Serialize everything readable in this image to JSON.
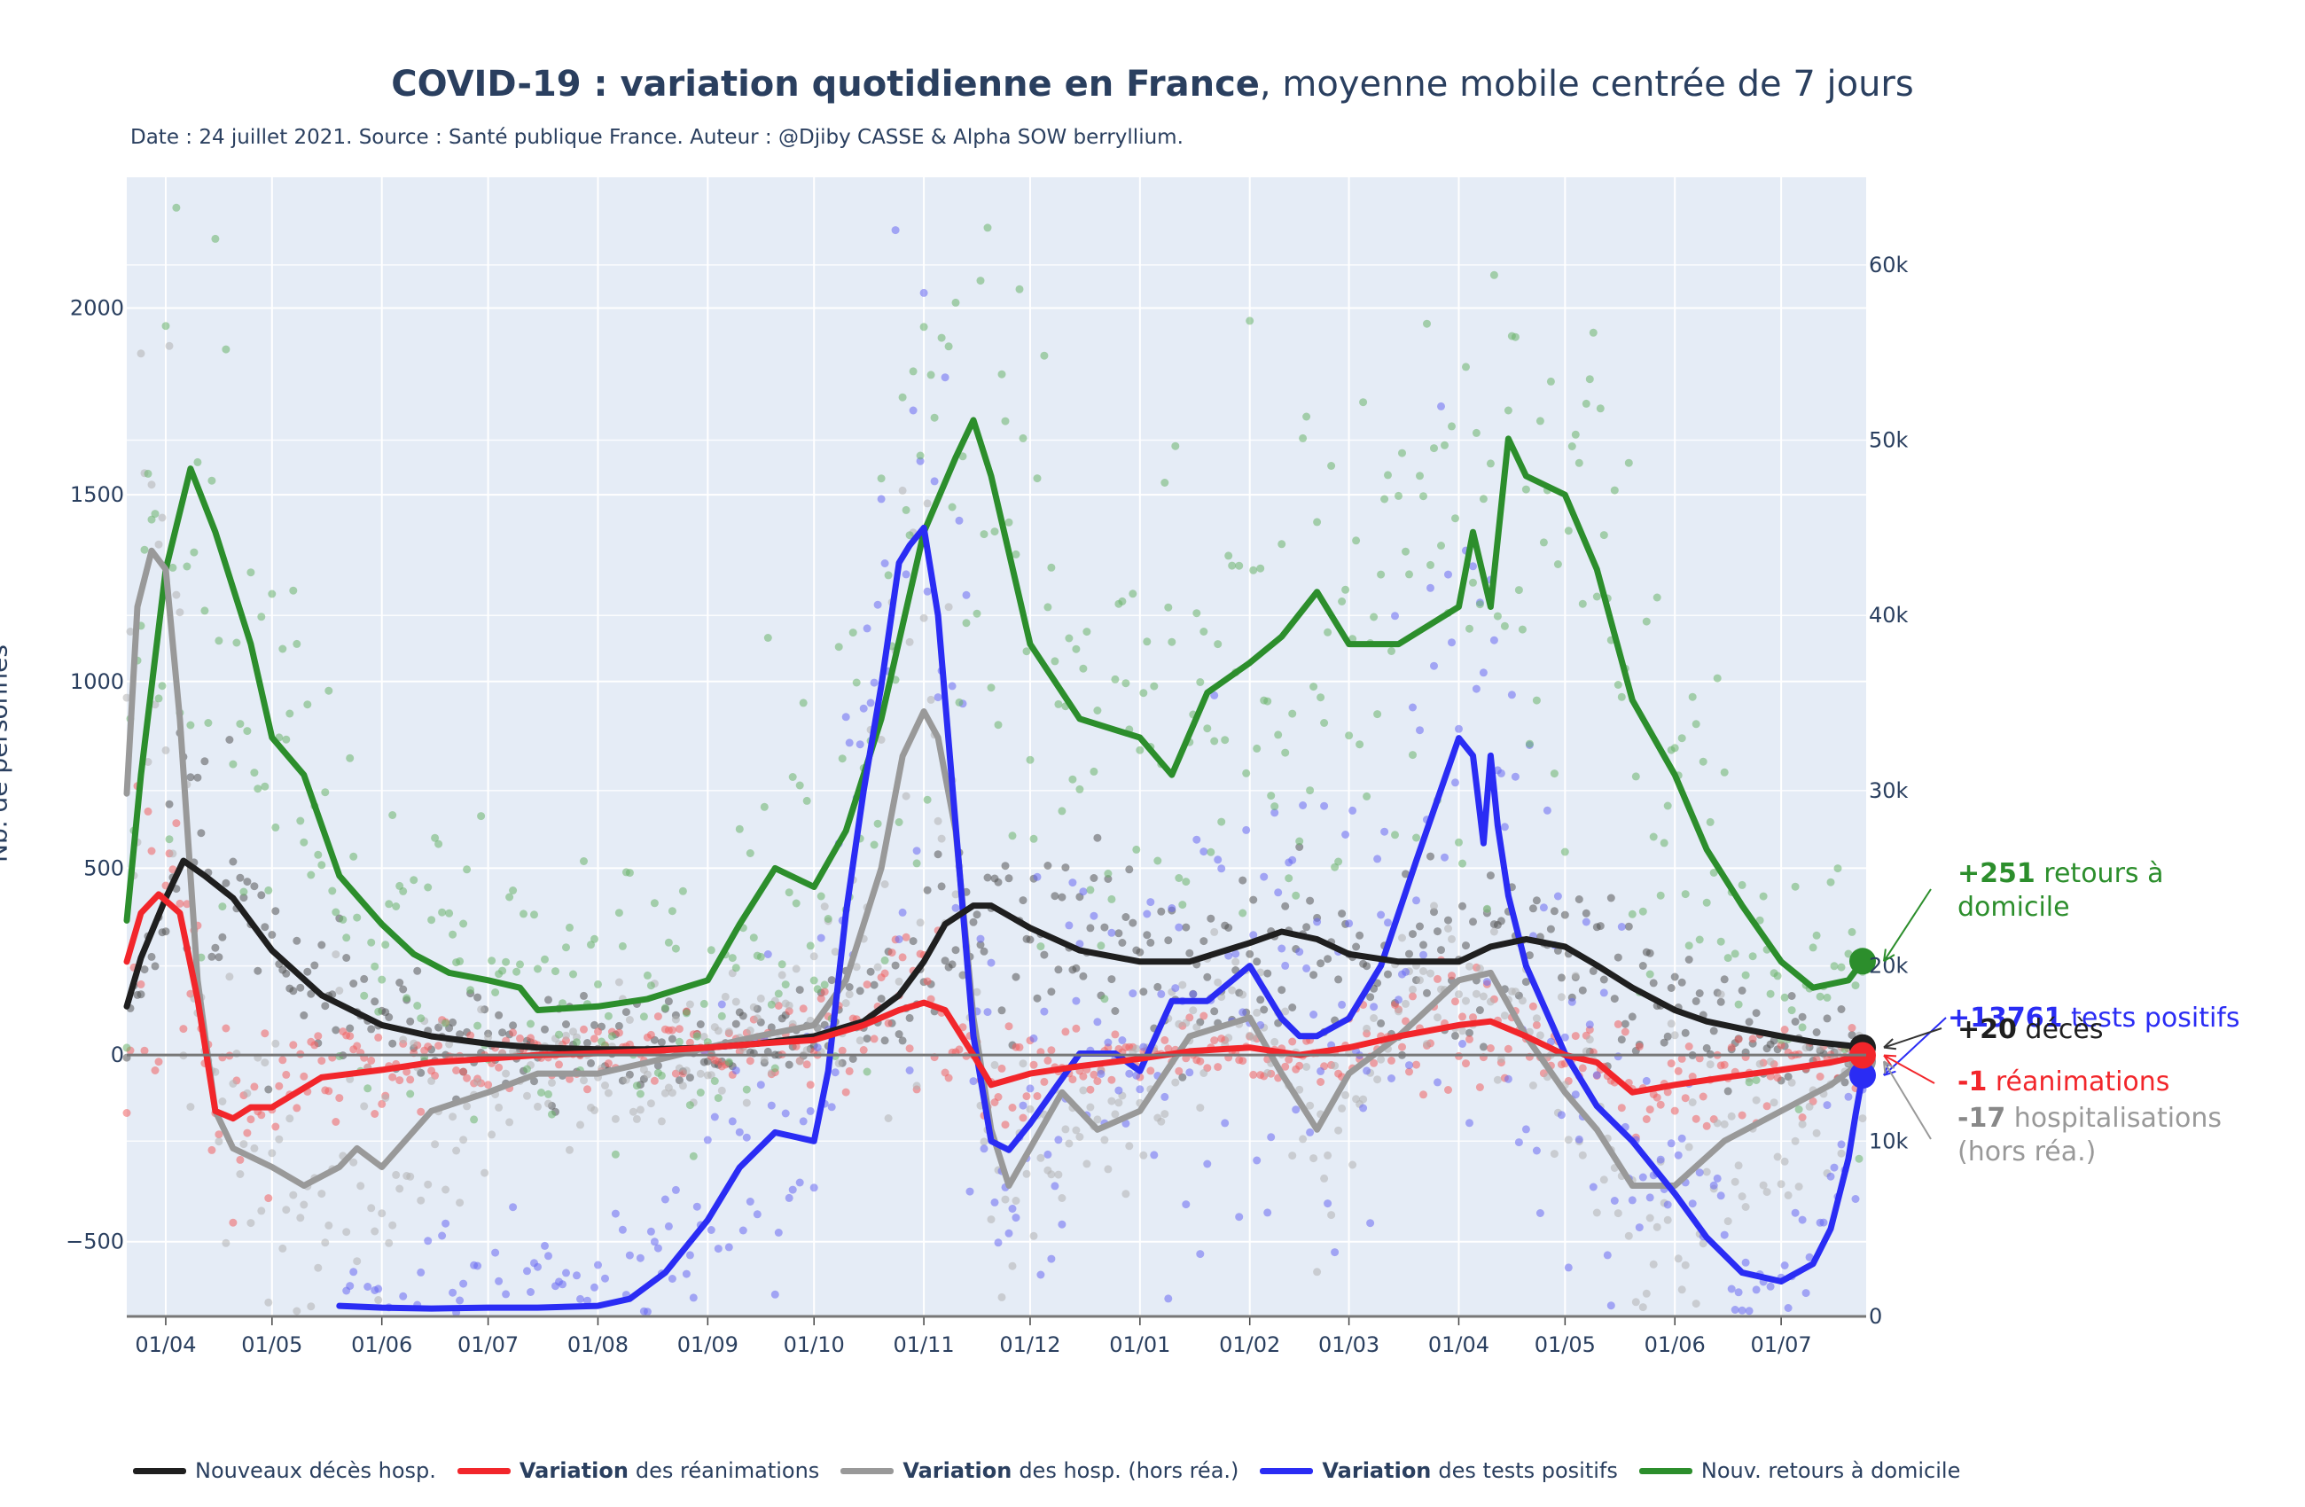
{
  "title": {
    "bold": "COVID-19 : variation quotidienne en France",
    "rest": ", moyenne mobile centrée de 7 jours"
  },
  "subtitle": "Date : 24 juillet 2021. Source : Santé publique France. Auteur : @Djiby CASSE & Alpha SOW berryllium.",
  "chart_data": {
    "type": "line",
    "ylabel": "Nb. de personnes",
    "x_tick_labels": [
      "01/04",
      "01/05",
      "01/06",
      "01/07",
      "01/08",
      "01/09",
      "01/10",
      "01/11",
      "01/12",
      "01/01",
      "01/02",
      "01/03",
      "01/04",
      "01/05",
      "01/06",
      "01/07"
    ],
    "x_range": [
      "2020-03-21",
      "2021-07-25"
    ],
    "ylim_left": [
      -700,
      2350
    ],
    "yticks_left": [
      -500,
      0,
      500,
      1000,
      1500,
      2000
    ],
    "ytick_labels_left": [
      "−500",
      "0",
      "500",
      "1000",
      "1500",
      "2000"
    ],
    "ylim_right": [
      0,
      65000
    ],
    "yticks_right": [
      0,
      10000,
      20000,
      30000,
      40000,
      50000,
      60000
    ],
    "ytick_labels_right": [
      "0",
      "10k",
      "20k",
      "30k",
      "40k",
      "50k",
      "60k"
    ],
    "grid": true,
    "legend_position": "bottom",
    "series": [
      {
        "name": "Nouveaux décès hosp.",
        "name_bold": "",
        "color": "#1f1f1f",
        "axis": "left",
        "last_value": 20,
        "x": [
          "2020-03-21",
          "2020-03-25",
          "2020-04-01",
          "2020-04-06",
          "2020-04-12",
          "2020-04-20",
          "2020-05-01",
          "2020-05-15",
          "2020-06-01",
          "2020-06-15",
          "2020-07-01",
          "2020-07-15",
          "2020-08-01",
          "2020-08-15",
          "2020-09-01",
          "2020-09-15",
          "2020-10-01",
          "2020-10-15",
          "2020-10-25",
          "2020-11-01",
          "2020-11-07",
          "2020-11-15",
          "2020-11-20",
          "2020-12-01",
          "2020-12-15",
          "2021-01-01",
          "2021-01-15",
          "2021-02-01",
          "2021-02-10",
          "2021-02-20",
          "2021-03-01",
          "2021-03-15",
          "2021-04-01",
          "2021-04-10",
          "2021-04-20",
          "2021-05-01",
          "2021-05-10",
          "2021-05-20",
          "2021-06-01",
          "2021-06-10",
          "2021-06-20",
          "2021-07-01",
          "2021-07-10",
          "2021-07-20",
          "2021-07-24"
        ],
        "y": [
          130,
          260,
          420,
          520,
          480,
          420,
          280,
          160,
          80,
          50,
          30,
          20,
          15,
          15,
          20,
          30,
          50,
          90,
          160,
          250,
          350,
          400,
          400,
          340,
          280,
          250,
          250,
          300,
          330,
          310,
          270,
          250,
          250,
          290,
          310,
          290,
          240,
          180,
          120,
          90,
          70,
          50,
          35,
          25,
          20
        ]
      },
      {
        "name": "des réanimations",
        "name_bold": "Variation",
        "color": "#f2262b",
        "axis": "left",
        "last_value": -1,
        "x": [
          "2020-03-21",
          "2020-03-25",
          "2020-03-30",
          "2020-04-05",
          "2020-04-10",
          "2020-04-15",
          "2020-04-20",
          "2020-04-25",
          "2020-05-01",
          "2020-05-15",
          "2020-06-01",
          "2020-06-15",
          "2020-07-01",
          "2020-07-15",
          "2020-08-01",
          "2020-08-15",
          "2020-09-01",
          "2020-09-15",
          "2020-10-01",
          "2020-10-15",
          "2020-10-25",
          "2020-11-01",
          "2020-11-07",
          "2020-11-15",
          "2020-11-20",
          "2020-12-01",
          "2020-12-15",
          "2021-01-01",
          "2021-01-15",
          "2021-02-01",
          "2021-02-15",
          "2021-03-01",
          "2021-03-15",
          "2021-04-01",
          "2021-04-10",
          "2021-04-20",
          "2021-05-01",
          "2021-05-10",
          "2021-05-20",
          "2021-06-01",
          "2021-06-15",
          "2021-07-01",
          "2021-07-15",
          "2021-07-24"
        ],
        "y": [
          250,
          380,
          430,
          380,
          150,
          -150,
          -170,
          -140,
          -140,
          -60,
          -40,
          -20,
          -10,
          0,
          5,
          10,
          20,
          30,
          40,
          80,
          120,
          140,
          120,
          0,
          -80,
          -50,
          -30,
          -10,
          10,
          20,
          0,
          20,
          50,
          80,
          90,
          50,
          0,
          -20,
          -100,
          -80,
          -60,
          -40,
          -20,
          -1
        ]
      },
      {
        "name": "des hosp. (hors réa.)",
        "name_bold": "Variation",
        "color": "#999999",
        "axis": "left",
        "last_value": -17,
        "x": [
          "2020-03-21",
          "2020-03-24",
          "2020-03-28",
          "2020-04-01",
          "2020-04-05",
          "2020-04-10",
          "2020-04-15",
          "2020-04-20",
          "2020-05-01",
          "2020-05-10",
          "2020-05-20",
          "2020-05-25",
          "2020-06-01",
          "2020-06-15",
          "2020-07-01",
          "2020-07-15",
          "2020-08-01",
          "2020-08-15",
          "2020-09-01",
          "2020-09-15",
          "2020-10-01",
          "2020-10-10",
          "2020-10-20",
          "2020-10-26",
          "2020-11-01",
          "2020-11-05",
          "2020-11-10",
          "2020-11-15",
          "2020-11-20",
          "2020-11-25",
          "2020-12-01",
          "2020-12-10",
          "2020-12-20",
          "2021-01-01",
          "2021-01-15",
          "2021-02-01",
          "2021-02-10",
          "2021-02-20",
          "2021-03-01",
          "2021-03-15",
          "2021-04-01",
          "2021-04-10",
          "2021-04-20",
          "2021-05-01",
          "2021-05-10",
          "2021-05-20",
          "2021-06-01",
          "2021-06-15",
          "2021-07-01",
          "2021-07-15",
          "2021-07-24"
        ],
        "y": [
          700,
          1200,
          1350,
          1300,
          900,
          200,
          -150,
          -250,
          -300,
          -350,
          -300,
          -250,
          -300,
          -150,
          -100,
          -50,
          -50,
          -20,
          20,
          50,
          80,
          200,
          500,
          800,
          920,
          850,
          600,
          100,
          -200,
          -350,
          -250,
          -100,
          -200,
          -150,
          50,
          100,
          -50,
          -200,
          -50,
          50,
          200,
          220,
          50,
          -100,
          -200,
          -350,
          -350,
          -230,
          -150,
          -80,
          -17
        ]
      },
      {
        "name": "des tests positifs",
        "name_bold": "Variation",
        "color": "#2a2cf4",
        "axis": "right",
        "last_value": 13761,
        "x": [
          "2020-05-20",
          "2020-06-01",
          "2020-06-15",
          "2020-07-01",
          "2020-07-15",
          "2020-08-01",
          "2020-08-10",
          "2020-08-20",
          "2020-09-01",
          "2020-09-10",
          "2020-09-20",
          "2020-10-01",
          "2020-10-05",
          "2020-10-10",
          "2020-10-15",
          "2020-10-20",
          "2020-10-25",
          "2020-10-28",
          "2020-11-01",
          "2020-11-05",
          "2020-11-10",
          "2020-11-15",
          "2020-11-20",
          "2020-11-25",
          "2020-12-01",
          "2020-12-15",
          "2020-12-25",
          "2021-01-01",
          "2021-01-10",
          "2021-01-20",
          "2021-02-01",
          "2021-02-10",
          "2021-02-15",
          "2021-02-20",
          "2021-03-01",
          "2021-03-10",
          "2021-03-20",
          "2021-04-01",
          "2021-04-05",
          "2021-04-08",
          "2021-04-10",
          "2021-04-12",
          "2021-04-15",
          "2021-04-20",
          "2021-05-01",
          "2021-05-10",
          "2021-05-20",
          "2021-06-01",
          "2021-06-10",
          "2021-06-20",
          "2021-07-01",
          "2021-07-10",
          "2021-07-15",
          "2021-07-20",
          "2021-07-22",
          "2021-07-24"
        ],
        "y": [
          600,
          500,
          450,
          500,
          500,
          600,
          1000,
          2500,
          5500,
          8500,
          10500,
          10000,
          14000,
          23000,
          30000,
          36000,
          43000,
          44000,
          45000,
          40000,
          28000,
          16000,
          10000,
          9500,
          11000,
          15000,
          15000,
          14000,
          18000,
          18000,
          20000,
          17000,
          16000,
          16000,
          17000,
          20000,
          26000,
          33000,
          32000,
          27000,
          32000,
          28000,
          24000,
          20000,
          15000,
          12000,
          10000,
          7000,
          4500,
          2500,
          2000,
          3000,
          5000,
          9000,
          11500,
          13761
        ]
      },
      {
        "name": "Nouv. retours à domicile",
        "name_bold": "",
        "color": "#2c8e2c",
        "axis": "left",
        "last_value": 251,
        "x": [
          "2020-03-21",
          "2020-03-25",
          "2020-04-01",
          "2020-04-08",
          "2020-04-15",
          "2020-04-25",
          "2020-05-01",
          "2020-05-10",
          "2020-05-20",
          "2020-06-01",
          "2020-06-10",
          "2020-06-20",
          "2020-07-01",
          "2020-07-10",
          "2020-07-15",
          "2020-08-01",
          "2020-08-15",
          "2020-09-01",
          "2020-09-10",
          "2020-09-20",
          "2020-10-01",
          "2020-10-10",
          "2020-10-20",
          "2020-11-01",
          "2020-11-10",
          "2020-11-15",
          "2020-11-20",
          "2020-12-01",
          "2020-12-15",
          "2021-01-01",
          "2021-01-10",
          "2021-01-20",
          "2021-02-01",
          "2021-02-10",
          "2021-02-20",
          "2021-03-01",
          "2021-03-15",
          "2021-04-01",
          "2021-04-05",
          "2021-04-10",
          "2021-04-15",
          "2021-04-20",
          "2021-05-01",
          "2021-05-10",
          "2021-05-20",
          "2021-06-01",
          "2021-06-10",
          "2021-06-20",
          "2021-07-01",
          "2021-07-10",
          "2021-07-20",
          "2021-07-24"
        ],
        "y": [
          360,
          750,
          1300,
          1570,
          1400,
          1100,
          850,
          750,
          480,
          350,
          270,
          220,
          200,
          180,
          120,
          130,
          150,
          200,
          350,
          500,
          450,
          600,
          900,
          1400,
          1600,
          1700,
          1550,
          1100,
          900,
          850,
          750,
          970,
          1050,
          1120,
          1240,
          1100,
          1100,
          1200,
          1400,
          1200,
          1650,
          1550,
          1500,
          1300,
          950,
          750,
          550,
          400,
          250,
          180,
          200,
          251
        ]
      }
    ],
    "annotations": [
      {
        "value": "+251",
        "text": " retours à",
        "text2": " domicile",
        "color": "#2c8e2c"
      },
      {
        "value": "+13761",
        "text": " tests positifs",
        "color": "#2a2cf4"
      },
      {
        "value": "+20",
        "text": " décès",
        "color": "#1f1f1f"
      },
      {
        "value": "-1",
        "text": " réanimations",
        "color": "#f2262b"
      },
      {
        "value": "-17",
        "text": " hospitalisations",
        "text2": " (hors réa.)",
        "color": "#999999",
        "value_color": "#888888"
      }
    ]
  }
}
